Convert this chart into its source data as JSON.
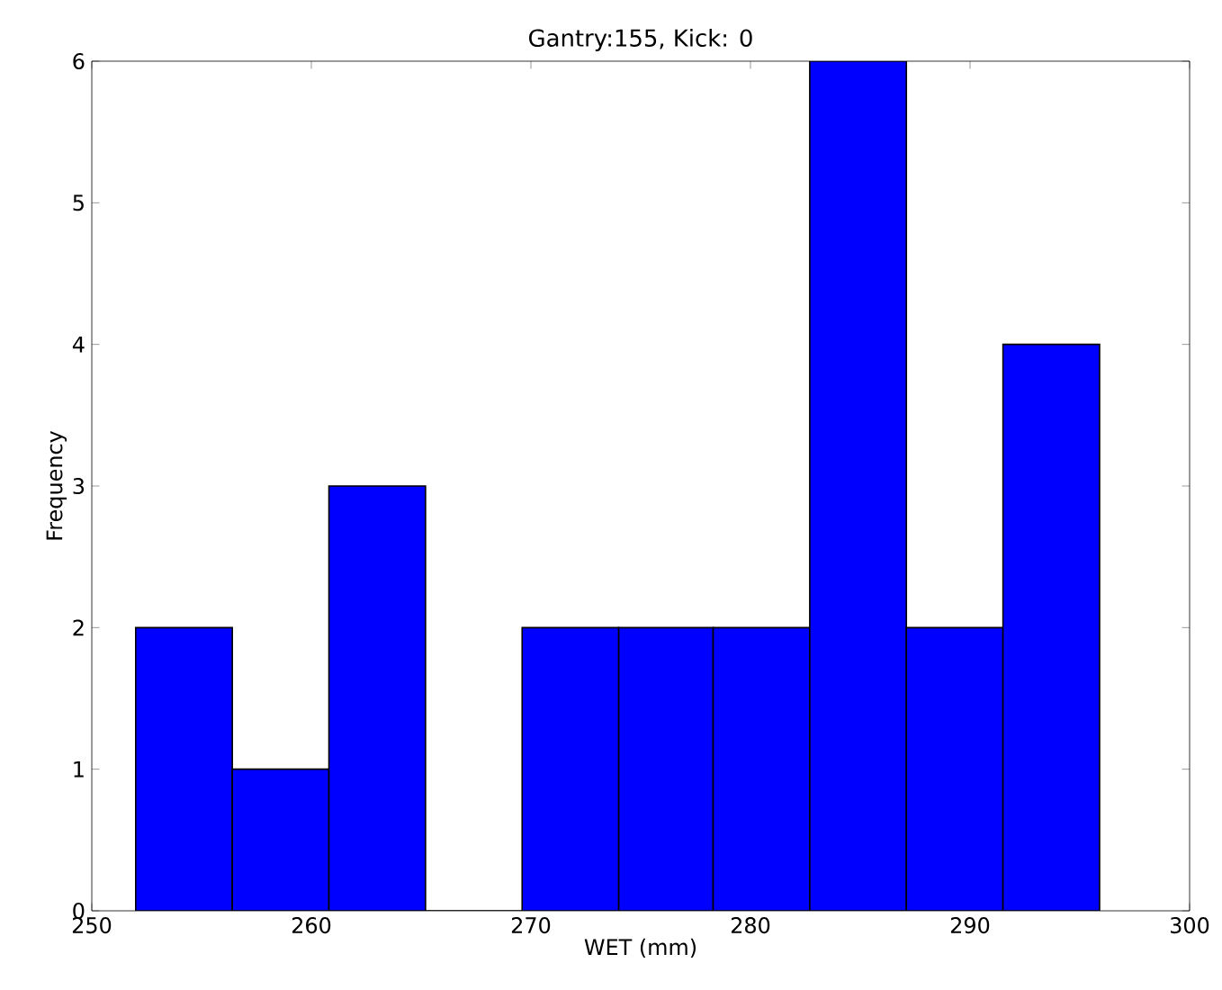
{
  "chart_data": {
    "type": "histogram",
    "title": "Gantry:155, Kick: 0",
    "xlabel": "WET (mm)",
    "ylabel": "Frequency",
    "bins": [
      252.0,
      256.4,
      260.8,
      265.2,
      269.6,
      274.0,
      278.3,
      282.7,
      287.1,
      291.5,
      295.9
    ],
    "values": [
      2,
      1,
      3,
      0,
      2,
      2,
      2,
      6,
      2,
      4
    ],
    "color": "#0000ff",
    "xlim": [
      250,
      300
    ],
    "xticks": [
      250,
      260,
      270,
      280,
      290,
      300
    ],
    "ylim": [
      0,
      6
    ],
    "yticks": [
      0,
      1,
      2,
      3,
      4,
      5,
      6
    ],
    "grid": false
  }
}
